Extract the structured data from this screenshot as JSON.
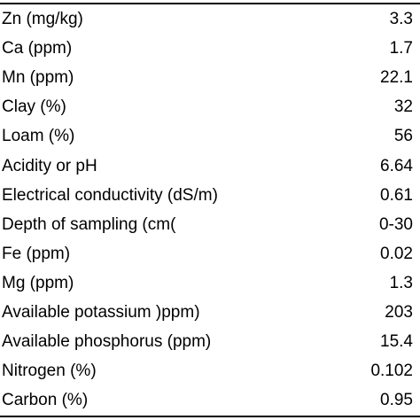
{
  "table": {
    "rows": [
      {
        "parameter": "Zn (mg/kg)",
        "value": "3.3"
      },
      {
        "parameter": "Ca (ppm)",
        "value": "1.7"
      },
      {
        "parameter": "Mn (ppm)",
        "value": "22.1"
      },
      {
        "parameter": "Clay (%)",
        "value": "32"
      },
      {
        "parameter": "Loam (%)",
        "value": "56"
      },
      {
        "parameter": "Acidity or pH",
        "value": "6.64"
      },
      {
        "parameter": "Electrical conductivity (dS/m)",
        "value": "0.61"
      },
      {
        "parameter": "Depth of sampling (cm(",
        "value": "0-30"
      },
      {
        "parameter": "Fe (ppm)",
        "value": "0.02"
      },
      {
        "parameter": "Mg (ppm)",
        "value": "1.3"
      },
      {
        "parameter": "Available potassium )ppm)",
        "value": "203"
      },
      {
        "parameter": "Available phosphorus (ppm)",
        "value": "15.4"
      },
      {
        "parameter": "Nitrogen (%)",
        "value": "0.102"
      },
      {
        "parameter": "Carbon (%)",
        "value": "0.95"
      }
    ]
  }
}
